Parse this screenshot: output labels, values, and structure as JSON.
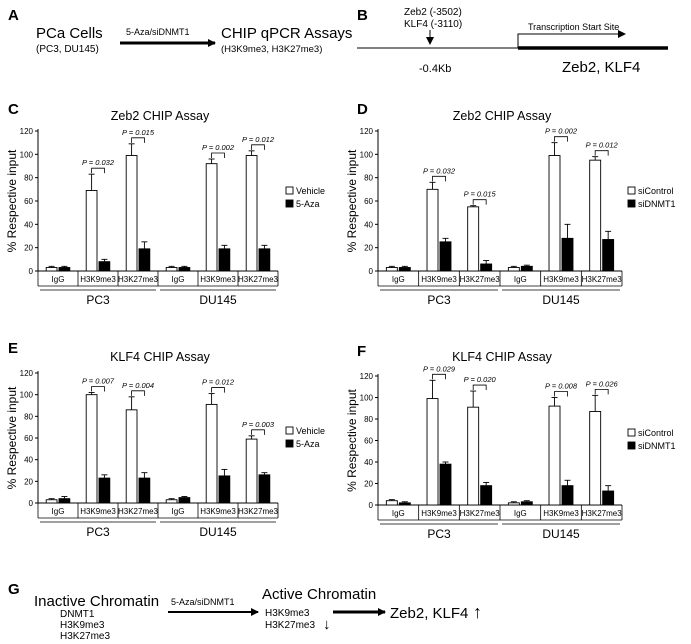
{
  "panel_a": {
    "letter": "A",
    "left_title": "PCa Cells",
    "left_sub": "(PC3, DU145)",
    "arrow_label": "5-Aza/siDNMT1",
    "right_title": "CHIP qPCR Assays",
    "right_sub": "(H3K9me3, H3K27me3)"
  },
  "panel_b": {
    "letter": "B",
    "site1": "Zeb2 (-3502)",
    "site2": "KLF4 (-3110)",
    "tss_label": "Transcription Start Site",
    "distance": "-0.4Kb",
    "genes": "Zeb2, KLF4"
  },
  "panel_g": {
    "letter": "G",
    "inactive_title": "Inactive Chromatin",
    "inactive_items": [
      "DNMT1",
      "H3K9me3",
      "H3K27me3"
    ],
    "arrow_label": "5-Aza/siDNMT1",
    "active_title": "Active Chromatin",
    "active_items": [
      "H3K9me3",
      "H3K27me3"
    ],
    "down_arrow": "↓",
    "result": "Zeb2, KLF4",
    "up_arrow": "↑"
  },
  "colors": {
    "vehicle": "#ffffff",
    "treated": "#000000",
    "ink": "#000000"
  },
  "chart_data": [
    {
      "letter": "C",
      "type": "bar",
      "title": "Zeb2 CHIP Assay",
      "ylabel": "% Respective input",
      "ylim": [
        0,
        120
      ],
      "yticks": [
        "0",
        "20",
        "40",
        "60",
        "80",
        "100",
        "120"
      ],
      "categories": [
        "IgG",
        "H3K9me3",
        "H3K27me3",
        "IgG",
        "H3K9me3",
        "H3K27me3"
      ],
      "groups": [
        "PC3",
        "DU145"
      ],
      "legend": [
        "Vehicle",
        "5-Aza"
      ],
      "series": [
        {
          "name": "Vehicle",
          "values": [
            3,
            69,
            99,
            3,
            92,
            99
          ],
          "errors": [
            1,
            14,
            10,
            1,
            4,
            4
          ]
        },
        {
          "name": "5-Aza",
          "values": [
            3,
            8,
            19,
            3,
            19,
            19
          ],
          "errors": [
            1,
            2,
            6,
            1,
            3,
            3
          ]
        }
      ],
      "pvalues": [
        {
          "cat": 1,
          "text": "P = 0.032"
        },
        {
          "cat": 2,
          "text": "P = 0.015"
        },
        {
          "cat": 4,
          "text": "P = 0.002"
        },
        {
          "cat": 5,
          "text": "P = 0.012"
        }
      ]
    },
    {
      "letter": "D",
      "type": "bar",
      "title": "Zeb2 CHIP Assay",
      "ylabel": "% Respective input",
      "ylim": [
        0,
        120
      ],
      "yticks": [
        "0",
        "20",
        "40",
        "60",
        "80",
        "100",
        "120"
      ],
      "categories": [
        "IgG",
        "H3K9me3",
        "H3K27me3",
        "IgG",
        "H3K9me3",
        "H3K27me3"
      ],
      "groups": [
        "PC3",
        "DU145"
      ],
      "legend": [
        "siControl",
        "siDNMT1"
      ],
      "series": [
        {
          "name": "siControl",
          "values": [
            3,
            70,
            55,
            3,
            99,
            95
          ],
          "errors": [
            1,
            6,
            1,
            1,
            11,
            3
          ]
        },
        {
          "name": "siDNMT1",
          "values": [
            3,
            25,
            6,
            4,
            28,
            27
          ],
          "errors": [
            1,
            3,
            3,
            1,
            12,
            7
          ]
        }
      ],
      "pvalues": [
        {
          "cat": 1,
          "text": "P = 0.032"
        },
        {
          "cat": 2,
          "text": "P = 0.015"
        },
        {
          "cat": 4,
          "text": "P = 0.002"
        },
        {
          "cat": 5,
          "text": "P = 0.012"
        }
      ]
    },
    {
      "letter": "E",
      "type": "bar",
      "title": "KLF4 CHIP Assay",
      "ylabel": "% Respective input",
      "ylim": [
        0,
        120
      ],
      "yticks": [
        "0",
        "20",
        "40",
        "60",
        "80",
        "100",
        "120"
      ],
      "categories": [
        "IgG",
        "H3K9me3",
        "H3K27me3",
        "IgG",
        "H3K9me3",
        "H3K27me3"
      ],
      "groups": [
        "PC3",
        "DU145"
      ],
      "legend": [
        "Vehicle",
        "5-Aza"
      ],
      "series": [
        {
          "name": "Vehicle",
          "values": [
            3,
            100,
            86,
            3,
            91,
            59
          ],
          "errors": [
            1,
            2,
            12,
            1,
            10,
            3
          ]
        },
        {
          "name": "5-Aza",
          "values": [
            4,
            23,
            23,
            5,
            25,
            26
          ],
          "errors": [
            2,
            3,
            5,
            1,
            6,
            2
          ]
        }
      ],
      "pvalues": [
        {
          "cat": 1,
          "text": "P = 0.007"
        },
        {
          "cat": 2,
          "text": "P = 0.004"
        },
        {
          "cat": 4,
          "text": "P = 0.012"
        },
        {
          "cat": 5,
          "text": "P = 0.003"
        }
      ]
    },
    {
      "letter": "F",
      "type": "bar",
      "title": "KLF4 CHIP Assay",
      "ylabel": "% Respective input",
      "ylim": [
        0,
        120
      ],
      "yticks": [
        "0",
        "20",
        "40",
        "60",
        "80",
        "100",
        "120"
      ],
      "categories": [
        "IgG",
        "H3K9me3",
        "H3K27me3",
        "IgG",
        "H3K9me3",
        "H3K27me3"
      ],
      "groups": [
        "PC3",
        "DU145"
      ],
      "legend": [
        "siControl",
        "siDNMT1"
      ],
      "series": [
        {
          "name": "siControl",
          "values": [
            4,
            99,
            91,
            2,
            92,
            87
          ],
          "errors": [
            1,
            17,
            15,
            1,
            8,
            15
          ]
        },
        {
          "name": "siDNMT1",
          "values": [
            2,
            38,
            18,
            3,
            18,
            13
          ],
          "errors": [
            1,
            2,
            3,
            1,
            5,
            5
          ]
        }
      ],
      "pvalues": [
        {
          "cat": 1,
          "text": "P = 0.029"
        },
        {
          "cat": 2,
          "text": "P = 0.020"
        },
        {
          "cat": 4,
          "text": "P = 0.008"
        },
        {
          "cat": 5,
          "text": "P = 0.026"
        }
      ]
    }
  ]
}
